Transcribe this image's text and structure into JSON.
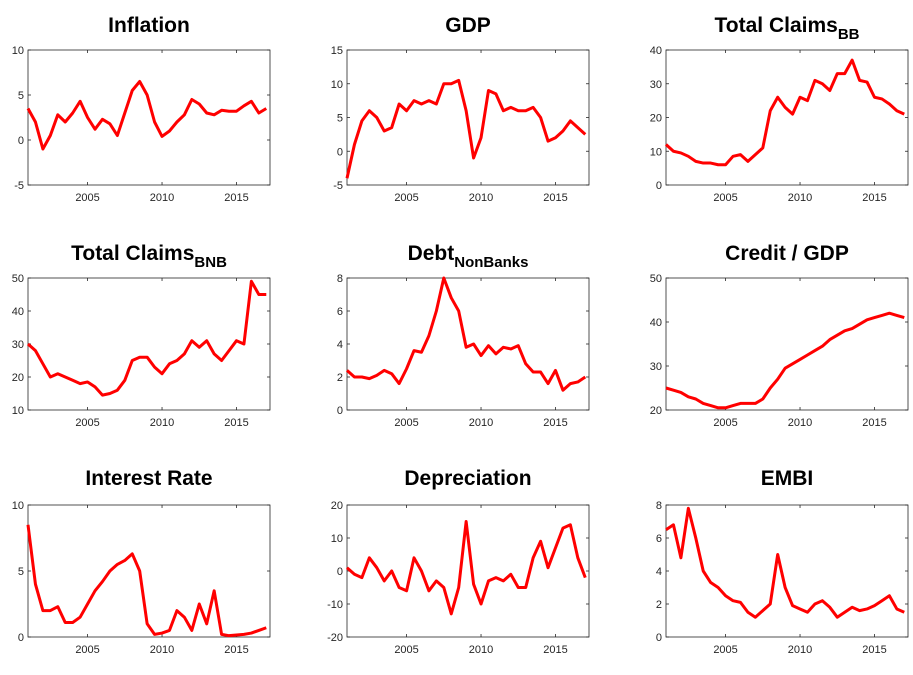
{
  "chart_data": [
    {
      "type": "line",
      "title": "Inflation",
      "color": "#ff0000",
      "x": [
        2001,
        2001.5,
        2002,
        2002.5,
        2003,
        2003.5,
        2004,
        2004.5,
        2005,
        2005.5,
        2006,
        2006.5,
        2007,
        2007.5,
        2008,
        2008.5,
        2009,
        2009.5,
        2010,
        2010.5,
        2011,
        2011.5,
        2012,
        2012.5,
        2013,
        2013.5,
        2014,
        2014.5,
        2015,
        2015.5,
        2016,
        2016.5,
        2017
      ],
      "values": [
        3.5,
        2,
        -1,
        0.5,
        2.8,
        2,
        3,
        4.3,
        2.5,
        1.2,
        2.3,
        1.8,
        0.5,
        3,
        5.5,
        6.5,
        5,
        2,
        0.4,
        1,
        2,
        2.8,
        4.5,
        4,
        3,
        2.8,
        3.3,
        3.2,
        3.2,
        3.8,
        4.3,
        3,
        3.5
      ],
      "xlim": [
        2001,
        2017.25
      ],
      "xticks": [
        2005,
        2010,
        2015
      ],
      "ylim": [
        -5,
        10
      ],
      "yticks": [
        -5,
        0,
        5,
        10
      ]
    },
    {
      "type": "line",
      "title": "GDP",
      "color": "#ff0000",
      "x": [
        2001,
        2001.5,
        2002,
        2002.5,
        2003,
        2003.5,
        2004,
        2004.5,
        2005,
        2005.5,
        2006,
        2006.5,
        2007,
        2007.5,
        2008,
        2008.5,
        2009,
        2009.5,
        2010,
        2010.5,
        2011,
        2011.5,
        2012,
        2012.5,
        2013,
        2013.5,
        2014,
        2014.5,
        2015,
        2015.5,
        2016,
        2016.5,
        2017
      ],
      "values": [
        -4,
        1,
        4.5,
        6,
        5,
        3,
        3.5,
        7,
        6,
        7.5,
        7,
        7.5,
        7,
        10,
        10,
        10.5,
        6,
        -1,
        2,
        9,
        8.5,
        6,
        6.5,
        6,
        6,
        6.5,
        5,
        1.5,
        2,
        3,
        4.5,
        3.5,
        2.5
      ],
      "xlim": [
        2001,
        2017.25
      ],
      "xticks": [
        2005,
        2010,
        2015
      ],
      "ylim": [
        -5,
        15
      ],
      "yticks": [
        -5,
        0,
        5,
        10,
        15
      ]
    },
    {
      "type": "line",
      "title": "Total Claims",
      "title_subscript": "BB",
      "color": "#ff0000",
      "x": [
        2001,
        2001.5,
        2002,
        2002.5,
        2003,
        2003.5,
        2004,
        2004.5,
        2005,
        2005.5,
        2006,
        2006.5,
        2007,
        2007.5,
        2008,
        2008.5,
        2009,
        2009.5,
        2010,
        2010.5,
        2011,
        2011.5,
        2012,
        2012.5,
        2013,
        2013.5,
        2014,
        2014.5,
        2015,
        2015.5,
        2016,
        2016.5,
        2017
      ],
      "values": [
        12,
        10,
        9.5,
        8.5,
        7,
        6.5,
        6.5,
        6,
        6,
        8.5,
        9,
        7,
        9,
        11,
        22,
        26,
        23,
        21,
        26,
        25,
        31,
        30,
        28,
        33,
        33,
        37,
        31,
        30.5,
        26,
        25.5,
        24,
        22,
        21
      ],
      "xlim": [
        2001,
        2017.25
      ],
      "xticks": [
        2005,
        2010,
        2015
      ],
      "ylim": [
        0,
        40
      ],
      "yticks": [
        0,
        10,
        20,
        30,
        40
      ]
    },
    {
      "type": "line",
      "title": "Total Claims",
      "title_subscript": "BNB",
      "color": "#ff0000",
      "x": [
        2001,
        2001.5,
        2002,
        2002.5,
        2003,
        2003.5,
        2004,
        2004.5,
        2005,
        2005.5,
        2006,
        2006.5,
        2007,
        2007.5,
        2008,
        2008.5,
        2009,
        2009.5,
        2010,
        2010.5,
        2011,
        2011.5,
        2012,
        2012.5,
        2013,
        2013.5,
        2014,
        2014.5,
        2015,
        2015.5,
        2016,
        2016.5,
        2017
      ],
      "values": [
        30,
        28,
        24,
        20,
        21,
        20,
        19,
        18,
        18.5,
        17,
        14.5,
        15,
        16,
        19,
        25,
        26,
        26,
        23,
        21,
        24,
        25,
        27,
        31,
        29,
        31,
        27,
        25,
        28,
        31,
        30,
        49,
        45,
        45
      ],
      "xlim": [
        2001,
        2017.25
      ],
      "xticks": [
        2005,
        2010,
        2015
      ],
      "ylim": [
        10,
        50
      ],
      "yticks": [
        10,
        20,
        30,
        40,
        50
      ]
    },
    {
      "type": "line",
      "title": "Debt",
      "title_subscript": "NonBanks",
      "color": "#ff0000",
      "x": [
        2001,
        2001.5,
        2002,
        2002.5,
        2003,
        2003.5,
        2004,
        2004.5,
        2005,
        2005.5,
        2006,
        2006.5,
        2007,
        2007.5,
        2008,
        2008.5,
        2009,
        2009.5,
        2010,
        2010.5,
        2011,
        2011.5,
        2012,
        2012.5,
        2013,
        2013.5,
        2014,
        2014.5,
        2015,
        2015.5,
        2016,
        2016.5,
        2017
      ],
      "values": [
        2.4,
        2,
        2,
        1.9,
        2.1,
        2.4,
        2.2,
        1.6,
        2.5,
        3.6,
        3.5,
        4.5,
        6,
        8,
        6.8,
        6,
        3.8,
        4,
        3.3,
        3.9,
        3.4,
        3.8,
        3.7,
        3.9,
        2.8,
        2.3,
        2.3,
        1.6,
        2.4,
        1.2,
        1.6,
        1.7,
        2
      ],
      "xlim": [
        2001,
        2017.25
      ],
      "xticks": [
        2005,
        2010,
        2015
      ],
      "ylim": [
        0,
        8
      ],
      "yticks": [
        0,
        2,
        4,
        6,
        8
      ]
    },
    {
      "type": "line",
      "title": "Credit / GDP",
      "color": "#ff0000",
      "x": [
        2001,
        2001.5,
        2002,
        2002.5,
        2003,
        2003.5,
        2004,
        2004.5,
        2005,
        2005.5,
        2006,
        2006.5,
        2007,
        2007.5,
        2008,
        2008.5,
        2009,
        2009.5,
        2010,
        2010.5,
        2011,
        2011.5,
        2012,
        2012.5,
        2013,
        2013.5,
        2014,
        2014.5,
        2015,
        2015.5,
        2016,
        2016.5,
        2017
      ],
      "values": [
        25,
        24.5,
        24,
        23,
        22.5,
        21.5,
        21,
        20.5,
        20.5,
        21,
        21.5,
        21.5,
        21.5,
        22.5,
        25,
        27,
        29.5,
        30.5,
        31.5,
        32.5,
        33.5,
        34.5,
        36,
        37,
        38,
        38.5,
        39.5,
        40.5,
        41,
        41.5,
        42,
        41.5,
        41
      ],
      "xlim": [
        2001,
        2017.25
      ],
      "xticks": [
        2005,
        2010,
        2015
      ],
      "ylim": [
        20,
        50
      ],
      "yticks": [
        20,
        30,
        40,
        50
      ]
    },
    {
      "type": "line",
      "title": "Interest Rate",
      "color": "#ff0000",
      "x": [
        2001,
        2001.5,
        2002,
        2002.5,
        2003,
        2003.5,
        2004,
        2004.5,
        2005,
        2005.5,
        2006,
        2006.5,
        2007,
        2007.5,
        2008,
        2008.5,
        2009,
        2009.5,
        2010,
        2010.5,
        2011,
        2011.5,
        2012,
        2012.5,
        2013,
        2013.5,
        2014,
        2014.5,
        2015,
        2015.5,
        2016,
        2016.5,
        2017
      ],
      "values": [
        8.5,
        4,
        2,
        2,
        2.3,
        1.1,
        1.1,
        1.5,
        2.5,
        3.5,
        4.2,
        5,
        5.5,
        5.8,
        6.3,
        5,
        1,
        0.2,
        0.3,
        0.5,
        2,
        1.5,
        0.5,
        2.5,
        1,
        3.5,
        0.2,
        0.1,
        0.15,
        0.2,
        0.3,
        0.5,
        0.7
      ],
      "xlim": [
        2001,
        2017.25
      ],
      "xticks": [
        2005,
        2010,
        2015
      ],
      "ylim": [
        0,
        10
      ],
      "yticks": [
        0,
        5,
        10
      ]
    },
    {
      "type": "line",
      "title": "Depreciation",
      "color": "#ff0000",
      "x": [
        2001,
        2001.5,
        2002,
        2002.5,
        2003,
        2003.5,
        2004,
        2004.5,
        2005,
        2005.5,
        2006,
        2006.5,
        2007,
        2007.5,
        2008,
        2008.5,
        2009,
        2009.5,
        2010,
        2010.5,
        2011,
        2011.5,
        2012,
        2012.5,
        2013,
        2013.5,
        2014,
        2014.5,
        2015,
        2015.5,
        2016,
        2016.5,
        2017
      ],
      "values": [
        1,
        -1,
        -2,
        4,
        1,
        -3,
        0,
        -5,
        -6,
        4,
        0,
        -6,
        -3,
        -5,
        -13,
        -5,
        15,
        -4,
        -10,
        -3,
        -2,
        -3,
        -1,
        -5,
        -5,
        4,
        9,
        1,
        7,
        13,
        14,
        4,
        -2
      ],
      "xlim": [
        2001,
        2017.25
      ],
      "xticks": [
        2005,
        2010,
        2015
      ],
      "ylim": [
        -20,
        20
      ],
      "yticks": [
        -20,
        -10,
        0,
        10,
        20
      ]
    },
    {
      "type": "line",
      "title": "EMBI",
      "color": "#ff0000",
      "x": [
        2001,
        2001.5,
        2002,
        2002.5,
        2003,
        2003.5,
        2004,
        2004.5,
        2005,
        2005.5,
        2006,
        2006.5,
        2007,
        2007.5,
        2008,
        2008.5,
        2009,
        2009.5,
        2010,
        2010.5,
        2011,
        2011.5,
        2012,
        2012.5,
        2013,
        2013.5,
        2014,
        2014.5,
        2015,
        2015.5,
        2016,
        2016.5,
        2017
      ],
      "values": [
        6.5,
        6.8,
        4.8,
        7.8,
        6,
        4,
        3.3,
        3,
        2.5,
        2.2,
        2.1,
        1.5,
        1.2,
        1.6,
        2,
        5,
        3,
        1.9,
        1.7,
        1.5,
        2,
        2.2,
        1.8,
        1.2,
        1.5,
        1.8,
        1.6,
        1.7,
        1.9,
        2.2,
        2.5,
        1.7,
        1.5
      ],
      "xlim": [
        2001,
        2017.25
      ],
      "xticks": [
        2005,
        2010,
        2015
      ],
      "ylim": [
        0,
        8
      ],
      "yticks": [
        0,
        2,
        4,
        6,
        8
      ]
    }
  ]
}
